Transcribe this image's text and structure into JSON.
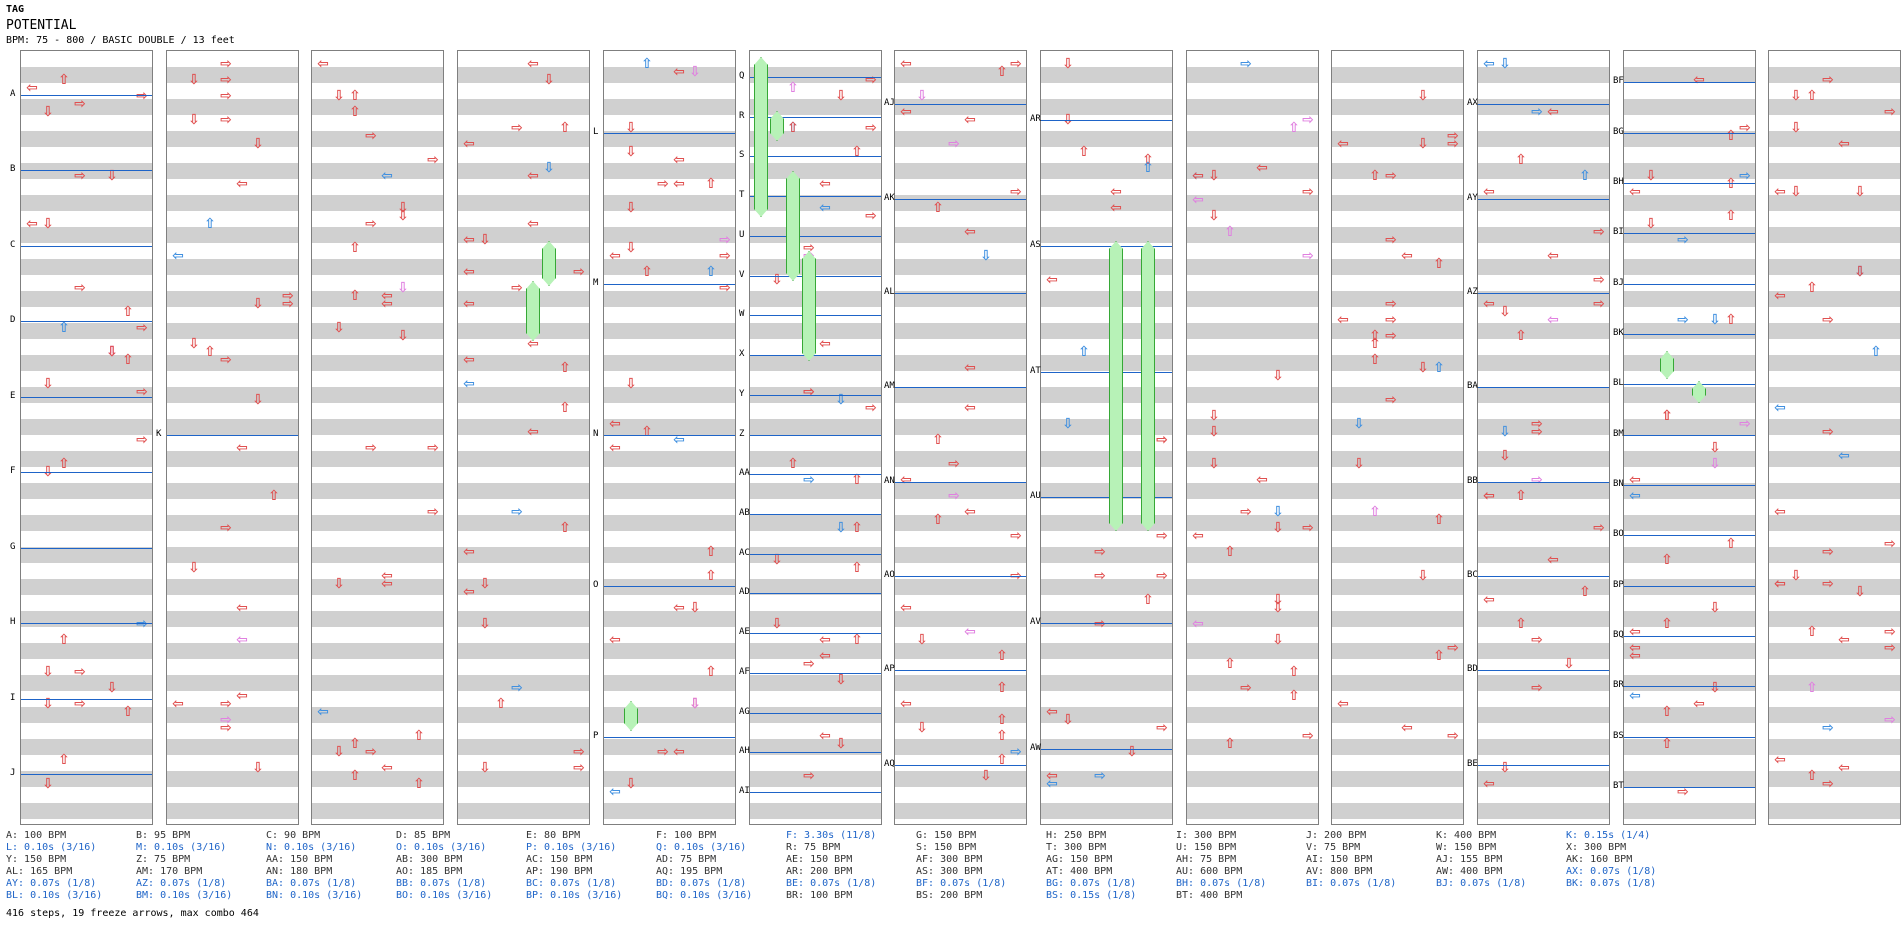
{
  "song": {
    "artist": "TAG",
    "title": "POTENTIAL",
    "info": "BPM: 75 - 800 / BASIC DOUBLE / 13 feet"
  },
  "columns": [
    {
      "labels": [
        "A",
        "B",
        "C",
        "D",
        "E",
        "F",
        "G",
        "H",
        "I",
        "J"
      ]
    },
    {
      "labels": [
        "K"
      ]
    },
    {
      "labels": []
    },
    {
      "labels": []
    },
    {
      "labels": [
        "L",
        "M",
        "N",
        "O",
        "P"
      ]
    },
    {
      "labels": [
        "Q",
        "R",
        "S",
        "T",
        "U",
        "V",
        "W",
        "X",
        "Y",
        "Z",
        "AA",
        "AB",
        "AC",
        "AD",
        "AE",
        "AF",
        "AG",
        "AH",
        "AI"
      ]
    },
    {
      "labels": [
        "AJ",
        "AK",
        "AL",
        "AM",
        "AN",
        "AO",
        "AP",
        "AQ"
      ]
    },
    {
      "labels": [
        "AR",
        "AS",
        "AT",
        "AU",
        "AV",
        "AW"
      ]
    },
    {
      "labels": []
    },
    {
      "labels": []
    },
    {
      "labels": [
        "AX",
        "AY",
        "AZ",
        "BA",
        "BB",
        "BC",
        "BD",
        "BE"
      ]
    },
    {
      "labels": [
        "BF",
        "BG",
        "BH",
        "BI",
        "BJ",
        "BK",
        "BL",
        "BM",
        "BN",
        "BO",
        "BP",
        "BQ",
        "BR",
        "BS",
        "BT"
      ]
    },
    {
      "labels": []
    }
  ],
  "legend": [
    [
      {
        "text": "A: 100 BPM",
        "kind": "gray"
      },
      {
        "text": "L: 0.10s (3/16)",
        "kind": "blue"
      },
      {
        "text": "Y: 150 BPM",
        "kind": "gray"
      },
      {
        "text": "AL: 165 BPM",
        "kind": "gray"
      },
      {
        "text": "AY: 0.07s (1/8)",
        "kind": "blue"
      },
      {
        "text": "BL: 0.10s (3/16)",
        "kind": "blue"
      }
    ],
    [
      {
        "text": "B: 95 BPM",
        "kind": "gray"
      },
      {
        "text": "M: 0.10s (3/16)",
        "kind": "blue"
      },
      {
        "text": "Z: 75 BPM",
        "kind": "gray"
      },
      {
        "text": "AM: 170 BPM",
        "kind": "gray"
      },
      {
        "text": "AZ: 0.07s (1/8)",
        "kind": "blue"
      },
      {
        "text": "BM: 0.10s (3/16)",
        "kind": "blue"
      }
    ],
    [
      {
        "text": "C: 90 BPM",
        "kind": "gray"
      },
      {
        "text": "N: 0.10s (3/16)",
        "kind": "blue"
      },
      {
        "text": "AA: 150 BPM",
        "kind": "gray"
      },
      {
        "text": "AN: 180 BPM",
        "kind": "gray"
      },
      {
        "text": "BA: 0.07s (1/8)",
        "kind": "blue"
      },
      {
        "text": "BN: 0.10s (3/16)",
        "kind": "blue"
      }
    ],
    [
      {
        "text": "D: 85 BPM",
        "kind": "gray"
      },
      {
        "text": "O: 0.10s (3/16)",
        "kind": "blue"
      },
      {
        "text": "AB: 300 BPM",
        "kind": "gray"
      },
      {
        "text": "AO: 185 BPM",
        "kind": "gray"
      },
      {
        "text": "BB: 0.07s (1/8)",
        "kind": "blue"
      },
      {
        "text": "BO: 0.10s (3/16)",
        "kind": "blue"
      }
    ],
    [
      {
        "text": "E: 80 BPM",
        "kind": "gray"
      },
      {
        "text": "P: 0.10s (3/16)",
        "kind": "blue"
      },
      {
        "text": "AC: 150 BPM",
        "kind": "gray"
      },
      {
        "text": "AP: 190 BPM",
        "kind": "gray"
      },
      {
        "text": "BC: 0.07s (1/8)",
        "kind": "blue"
      },
      {
        "text": "BP: 0.10s (3/16)",
        "kind": "blue"
      }
    ],
    [
      {
        "text": "F: 100 BPM",
        "kind": "gray"
      },
      {
        "text": "Q: 0.10s (3/16)",
        "kind": "blue"
      },
      {
        "text": "AD: 75 BPM",
        "kind": "gray"
      },
      {
        "text": "AQ: 195 BPM",
        "kind": "gray"
      },
      {
        "text": "BD: 0.07s (1/8)",
        "kind": "blue"
      },
      {
        "text": "BQ: 0.10s (3/16)",
        "kind": "blue"
      }
    ],
    [
      {
        "text": "F: 3.30s (11/8)",
        "kind": "blue"
      },
      {
        "text": "R: 75 BPM",
        "kind": "gray"
      },
      {
        "text": "AE: 150 BPM",
        "kind": "gray"
      },
      {
        "text": "AR: 200 BPM",
        "kind": "gray"
      },
      {
        "text": "BE: 0.07s (1/8)",
        "kind": "blue"
      },
      {
        "text": "BR: 100 BPM",
        "kind": "gray"
      }
    ],
    [
      {
        "text": "G: 150 BPM",
        "kind": "gray"
      },
      {
        "text": "S: 150 BPM",
        "kind": "gray"
      },
      {
        "text": "AF: 300 BPM",
        "kind": "gray"
      },
      {
        "text": "AS: 300 BPM",
        "kind": "gray"
      },
      {
        "text": "BF: 0.07s (1/8)",
        "kind": "blue"
      },
      {
        "text": "BS: 200 BPM",
        "kind": "gray"
      }
    ],
    [
      {
        "text": "H: 250 BPM",
        "kind": "gray"
      },
      {
        "text": "T: 300 BPM",
        "kind": "gray"
      },
      {
        "text": "AG: 150 BPM",
        "kind": "gray"
      },
      {
        "text": "AT: 400 BPM",
        "kind": "gray"
      },
      {
        "text": "BG: 0.07s (1/8)",
        "kind": "blue"
      },
      {
        "text": "BS: 0.15s (1/8)",
        "kind": "blue"
      }
    ],
    [
      {
        "text": "I: 300 BPM",
        "kind": "gray"
      },
      {
        "text": "U: 150 BPM",
        "kind": "gray"
      },
      {
        "text": "AH: 75 BPM",
        "kind": "gray"
      },
      {
        "text": "AU: 600 BPM",
        "kind": "gray"
      },
      {
        "text": "BH: 0.07s (1/8)",
        "kind": "blue"
      },
      {
        "text": "BT: 400 BPM",
        "kind": "gray"
      }
    ],
    [
      {
        "text": "J: 200 BPM",
        "kind": "gray"
      },
      {
        "text": "V: 75 BPM",
        "kind": "gray"
      },
      {
        "text": "AI: 150 BPM",
        "kind": "gray"
      },
      {
        "text": "AV: 800 BPM",
        "kind": "gray"
      },
      {
        "text": "BI: 0.07s (1/8)",
        "kind": "blue"
      }
    ],
    [
      {
        "text": "K: 400 BPM",
        "kind": "gray"
      },
      {
        "text": "W: 150 BPM",
        "kind": "gray"
      },
      {
        "text": "AJ: 155 BPM",
        "kind": "gray"
      },
      {
        "text": "AW: 400 BPM",
        "kind": "gray"
      },
      {
        "text": "BJ: 0.07s (1/8)",
        "kind": "blue"
      }
    ],
    [
      {
        "text": "K: 0.15s (1/4)",
        "kind": "blue"
      },
      {
        "text": "X: 300 BPM",
        "kind": "gray"
      },
      {
        "text": "AK: 160 BPM",
        "kind": "gray"
      },
      {
        "text": "AX: 0.07s (1/8)",
        "kind": "blue"
      },
      {
        "text": "BK: 0.07s (1/8)",
        "kind": "blue"
      }
    ]
  ],
  "summary": "416 steps, 19 freeze arrows, max combo 464",
  "colors": {
    "red": "#e05050",
    "blue": "#4090e0",
    "pink": "#e080e0",
    "freeze": "#b7f2b7",
    "line": "#1e64c8"
  }
}
